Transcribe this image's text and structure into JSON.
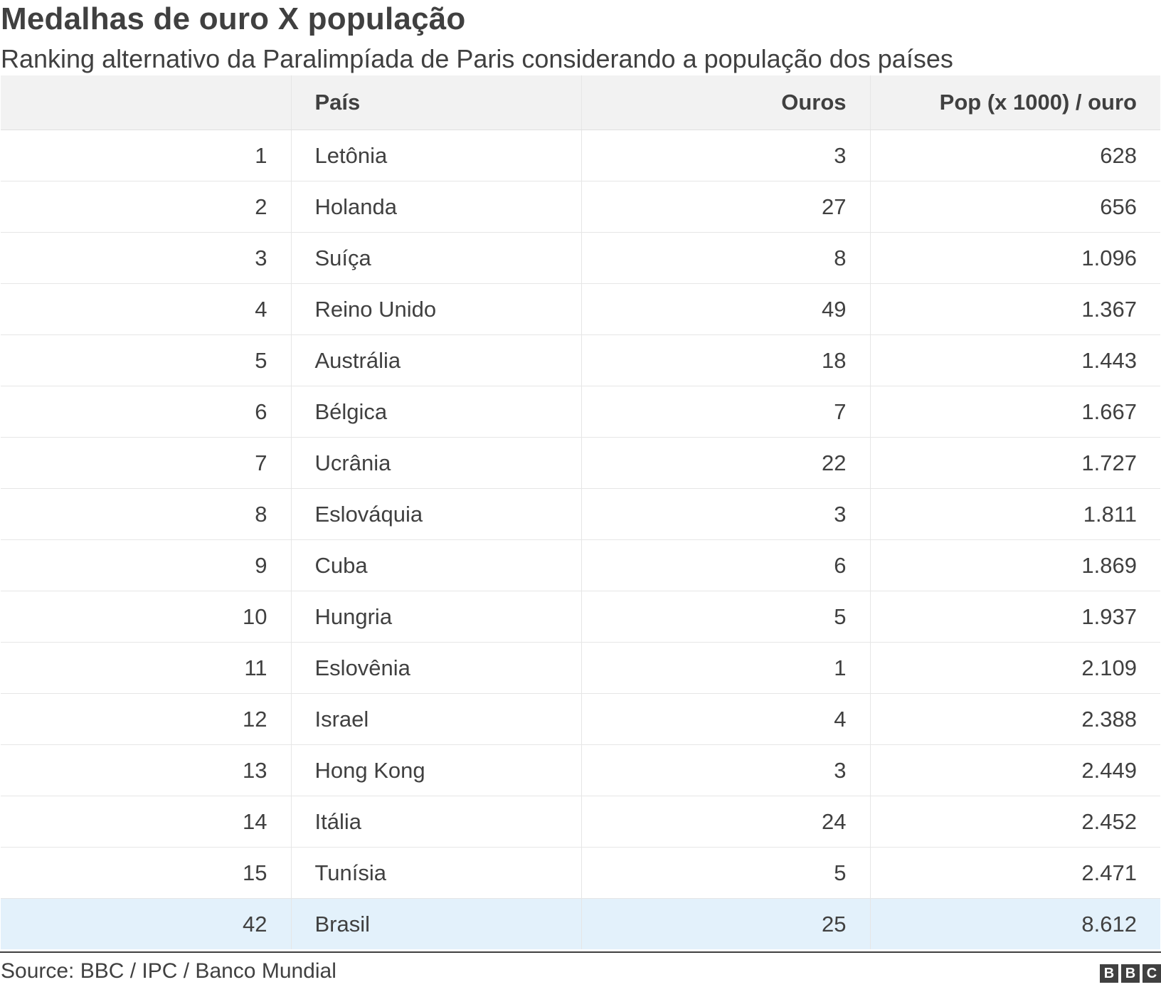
{
  "title": "Medalhas de ouro X população",
  "subtitle": "Ranking alternativo da Paralimpíada de Paris considerando a população dos países",
  "source": "Source: BBC / IPC / Banco Mundial",
  "logo": [
    "B",
    "B",
    "C"
  ],
  "colors": {
    "text": "#404040",
    "header_bg": "#f2f2f2",
    "highlight_bg": "#e3f1fb",
    "grid": "#e6e6e6"
  },
  "chart_data": {
    "type": "table",
    "columns": [
      "",
      "País",
      "Ouros",
      "Pop (x 1000) / ouro"
    ],
    "rows": [
      {
        "rank": "1",
        "pais": "Letônia",
        "ouros": "3",
        "pop": "628"
      },
      {
        "rank": "2",
        "pais": "Holanda",
        "ouros": "27",
        "pop": "656"
      },
      {
        "rank": "3",
        "pais": "Suíça",
        "ouros": "8",
        "pop": "1.096"
      },
      {
        "rank": "4",
        "pais": "Reino Unido",
        "ouros": "49",
        "pop": "1.367"
      },
      {
        "rank": "5",
        "pais": "Austrália",
        "ouros": "18",
        "pop": "1.443"
      },
      {
        "rank": "6",
        "pais": "Bélgica",
        "ouros": "7",
        "pop": "1.667"
      },
      {
        "rank": "7",
        "pais": "Ucrânia",
        "ouros": "22",
        "pop": "1.727"
      },
      {
        "rank": "8",
        "pais": "Eslováquia",
        "ouros": "3",
        "pop": "1.811"
      },
      {
        "rank": "9",
        "pais": "Cuba",
        "ouros": "6",
        "pop": "1.869"
      },
      {
        "rank": "10",
        "pais": "Hungria",
        "ouros": "5",
        "pop": "1.937"
      },
      {
        "rank": "11",
        "pais": "Eslovênia",
        "ouros": "1",
        "pop": "2.109"
      },
      {
        "rank": "12",
        "pais": "Israel",
        "ouros": "4",
        "pop": "2.388"
      },
      {
        "rank": "13",
        "pais": "Hong Kong",
        "ouros": "3",
        "pop": "2.449"
      },
      {
        "rank": "14",
        "pais": "Itália",
        "ouros": "24",
        "pop": "2.452"
      },
      {
        "rank": "15",
        "pais": "Tunísia",
        "ouros": "5",
        "pop": "2.471"
      },
      {
        "rank": "42",
        "pais": "Brasil",
        "ouros": "25",
        "pop": "8.612",
        "highlight": true
      }
    ]
  }
}
